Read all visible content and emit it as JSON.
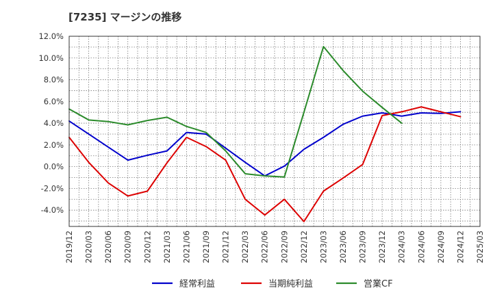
{
  "chart_data": {
    "type": "line",
    "title": "[7235]  マージンの推移",
    "xlabel": "",
    "ylabel": "",
    "ylim": [
      -5.5,
      12.0
    ],
    "y_ticks": [
      -4,
      -2,
      0,
      2,
      4,
      6,
      8,
      10,
      12
    ],
    "y_tick_labels": [
      "-4.0%",
      "-2.0%",
      "0.0%",
      "2.0%",
      "4.0%",
      "6.0%",
      "8.0%",
      "10.0%",
      "12.0%"
    ],
    "x": [
      "2019/12",
      "2020/03",
      "2020/06",
      "2020/09",
      "2020/12",
      "2021/03",
      "2021/06",
      "2021/09",
      "2021/12",
      "2022/03",
      "2022/06",
      "2022/09",
      "2022/12",
      "2023/03",
      "2023/06",
      "2023/09",
      "2023/12",
      "2024/03",
      "2024/06",
      "2024/09",
      "2024/12",
      "2025/03"
    ],
    "grid": true,
    "legend_position": "bottom",
    "series": [
      {
        "name": "経常利益",
        "color": "#0000cc",
        "values": [
          4.2,
          3.0,
          1.8,
          0.6,
          1.05,
          1.45,
          3.15,
          3.0,
          1.7,
          0.4,
          -0.85,
          0.05,
          1.6,
          2.7,
          3.9,
          4.65,
          4.95,
          4.65,
          4.95,
          4.9,
          5.05,
          null
        ]
      },
      {
        "name": "当期純利益",
        "color": "#dd0000",
        "values": [
          2.7,
          0.4,
          -1.5,
          -2.7,
          -2.25,
          0.35,
          2.7,
          1.85,
          0.6,
          -3.0,
          -4.45,
          -3.0,
          -5.05,
          -2.25,
          -1.05,
          0.2,
          4.7,
          5.05,
          5.5,
          5.05,
          4.6,
          null
        ]
      },
      {
        "name": "営業CF",
        "color": "#2a8a2a",
        "values": [
          5.3,
          4.3,
          4.15,
          3.85,
          4.25,
          4.55,
          3.7,
          3.15,
          1.45,
          -0.65,
          -0.85,
          -0.95,
          5.0,
          11.05,
          8.85,
          6.95,
          5.45,
          4.0,
          null,
          null,
          null,
          null
        ]
      }
    ]
  }
}
